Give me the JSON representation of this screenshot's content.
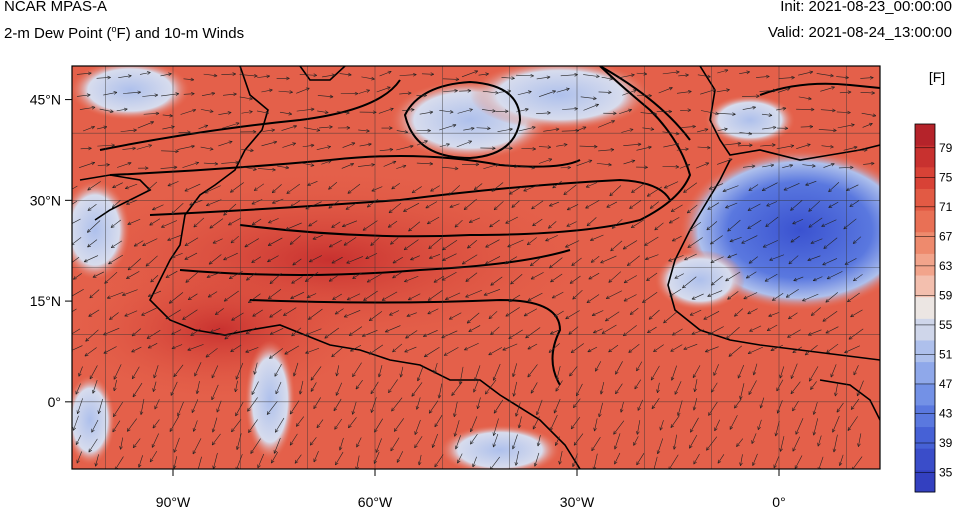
{
  "header": {
    "model": "NCAR MPAS-A",
    "product_prefix": "2-m Dew Point (",
    "product_degree": "o",
    "product_suffix": "F) and 10-m Winds",
    "init": "Init: 2021-08-23_00:00:00",
    "valid": "Valid: 2021-08-24_13:00:00"
  },
  "map": {
    "lon_range": [
      -105,
      15
    ],
    "lat_range": [
      -10,
      50
    ],
    "lat_ticks": [
      {
        "value": 45,
        "label": "45°N"
      },
      {
        "value": 30,
        "label": "30°N"
      },
      {
        "value": 15,
        "label": "15°N"
      },
      {
        "value": 0,
        "label": "0°"
      }
    ],
    "lon_ticks": [
      {
        "value": -90,
        "label": "90°W"
      },
      {
        "value": -60,
        "label": "60°W"
      },
      {
        "value": -30,
        "label": "30°W"
      },
      {
        "value": 0,
        "label": "0°"
      }
    ],
    "grid": true
  },
  "colorbar": {
    "unit": "[F]",
    "labels": [
      "79",
      "75",
      "71",
      "67",
      "63",
      "59",
      "55",
      "51",
      "47",
      "43",
      "39",
      "35"
    ],
    "colors": [
      "#b5232a",
      "#c8312f",
      "#d84236",
      "#e25a44",
      "#e97055",
      "#ee8a6d",
      "#f2a48b",
      "#f3bfae",
      "#ece6e3",
      "#cfd6ea",
      "#aec0ec",
      "#8fa8ea",
      "#7391e6",
      "#5a78df",
      "#4661d6",
      "#3a4dc9",
      "#3340c0"
    ]
  },
  "colors": {
    "warm": "#e25a44",
    "dry": "#4a63d8",
    "contour": "#000000",
    "arrows": "#222222"
  }
}
